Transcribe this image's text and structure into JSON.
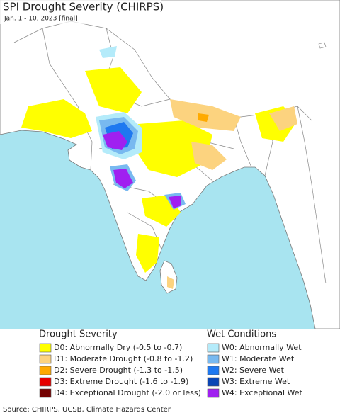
{
  "header": {
    "title": "SPI Drought Severity (CHIRPS)",
    "subtitle": "Jan. 1 - 10, 2023 [final]"
  },
  "legend": {
    "drought": {
      "title": "Drought Severity",
      "items": [
        {
          "label": "D0: Abnormally Dry (-0.5 to -0.7)",
          "color": "#ffff00"
        },
        {
          "label": "D1: Moderate Drought (-0.8 to -1.2)",
          "color": "#fcd37f"
        },
        {
          "label": "D2: Severe Drought (-1.3 to -1.5)",
          "color": "#ffaa00"
        },
        {
          "label": "D3: Extreme Drought (-1.6 to -1.9)",
          "color": "#e60000"
        },
        {
          "label": "D4: Exceptional Drought (-2.0 or less)",
          "color": "#730000"
        }
      ]
    },
    "wet": {
      "title": "Wet Conditions",
      "items": [
        {
          "label": "W0: Abnormally Wet",
          "color": "#b4ebfa"
        },
        {
          "label": "W1: Moderate Wet",
          "color": "#78b9f0"
        },
        {
          "label": "W2: Severe Wet",
          "color": "#1e78f0"
        },
        {
          "label": "W3: Extreme Wet",
          "color": "#0a46b4"
        },
        {
          "label": "W4: Exceptional Wet",
          "color": "#a020f0"
        }
      ]
    }
  },
  "footer": {
    "source": "Source: CHIRPS, UCSB, Climate Hazards Center"
  }
}
